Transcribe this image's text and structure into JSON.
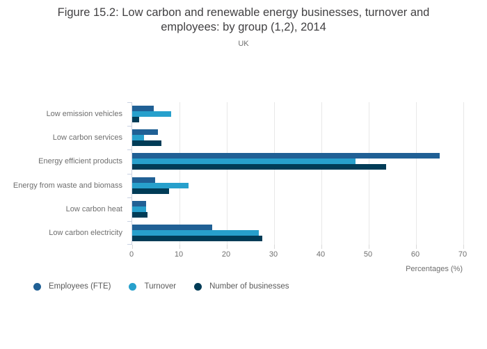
{
  "header": {
    "title_lines": [
      "Figure 15.2: Low carbon and renewable energy businesses, turnover and",
      "employees: by group (1,2), 2014"
    ],
    "subtitle": "UK"
  },
  "chart_data": {
    "type": "bar",
    "orientation": "horizontal",
    "title": "Figure 15.2: Low carbon and renewable energy businesses, turnover and employees: by group (1,2), 2014",
    "subtitle": "UK",
    "categories": [
      "Low emission vehicles",
      "Low carbon services",
      "Energy efficient products",
      "Energy from waste and biomass",
      "Low carbon heat",
      "Low carbon electricity"
    ],
    "series": [
      {
        "name": "Employees (FTE)",
        "color": "#206095",
        "values": [
          4.5,
          5.4,
          65.0,
          4.9,
          2.9,
          16.9
        ]
      },
      {
        "name": "Turnover",
        "color": "#27A0CC",
        "values": [
          8.2,
          2.5,
          47.2,
          11.9,
          3.0,
          26.8
        ]
      },
      {
        "name": "Number of businesses",
        "color": "#003C57",
        "values": [
          1.5,
          6.2,
          53.7,
          7.8,
          3.2,
          27.5
        ]
      }
    ],
    "xlabel": "Percentages (%)",
    "xticks": [
      0,
      10,
      20,
      30,
      40,
      50,
      60,
      70
    ],
    "xlim": [
      0,
      70
    ],
    "grid": true,
    "legend_position": "bottom-left"
  },
  "colors": {
    "title_text": "#414042",
    "axis_text": "#6e6e6e",
    "legend_text": "#595959",
    "gridline": "#e8e8e8",
    "y_axis_line": "#ccd4e2",
    "x_tick": "#d9d9d9"
  }
}
